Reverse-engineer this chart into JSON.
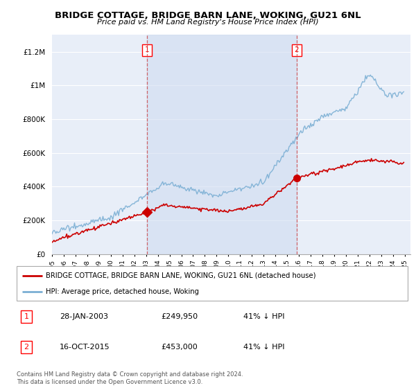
{
  "title": "BRIDGE COTTAGE, BRIDGE BARN LANE, WOKING, GU21 6NL",
  "subtitle": "Price paid vs. HM Land Registry's House Price Index (HPI)",
  "legend_label_red": "BRIDGE COTTAGE, BRIDGE BARN LANE, WOKING, GU21 6NL (detached house)",
  "legend_label_blue": "HPI: Average price, detached house, Woking",
  "footer": "Contains HM Land Registry data © Crown copyright and database right 2024.\nThis data is licensed under the Open Government Licence v3.0.",
  "table": [
    {
      "num": "1",
      "date": "28-JAN-2003",
      "price": "£249,950",
      "hpi": "41% ↓ HPI"
    },
    {
      "num": "2",
      "date": "16-OCT-2015",
      "price": "£453,000",
      "hpi": "41% ↓ HPI"
    }
  ],
  "marker1_year": 2003.07,
  "marker1_price": 249950,
  "marker2_year": 2015.79,
  "marker2_price": 453000,
  "ylabel_ticks": [
    "£0",
    "£200K",
    "£400K",
    "£600K",
    "£800K",
    "£1M",
    "£1.2M"
  ],
  "ytick_values": [
    0,
    200000,
    400000,
    600000,
    800000,
    1000000,
    1200000
  ],
  "ylim": [
    0,
    1300000
  ],
  "xlim_start": 1995,
  "xlim_end": 2025.5,
  "background_color": "#ffffff",
  "plot_bg_color": "#e8eef8",
  "shade_color": "#d0dcf0",
  "grid_color": "#ffffff",
  "red_color": "#cc0000",
  "blue_color": "#7bafd4"
}
